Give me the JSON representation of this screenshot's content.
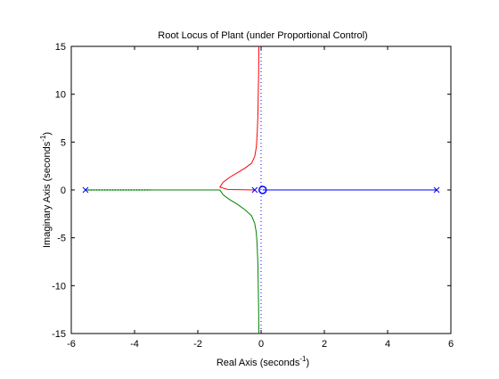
{
  "chart_data": {
    "type": "line",
    "title": "Root Locus of Plant (under Proportional Control)",
    "xlabel": "Real Axis (seconds",
    "xlabel_sup": "-1",
    "xlabel_end": ")",
    "ylabel": "Imaginary Axis (seconds",
    "ylabel_sup": "-1",
    "ylabel_end": ")",
    "xlim": [
      -6,
      6
    ],
    "ylim": [
      -15,
      15
    ],
    "xticks": [
      -6,
      -4,
      -2,
      0,
      2,
      4,
      6
    ],
    "yticks": [
      -15,
      -10,
      -5,
      0,
      5,
      10,
      15
    ],
    "grid": false,
    "series": [
      {
        "color": "#ff0000",
        "points": [
          [
            -0.2,
            0
          ],
          [
            -0.6,
            0.02
          ],
          [
            -1.05,
            0.05
          ],
          [
            -1.3,
            0.3
          ],
          [
            -1.2,
            0.8
          ],
          [
            -1.0,
            1.3
          ],
          [
            -0.75,
            1.8
          ],
          [
            -0.5,
            2.3
          ],
          [
            -0.3,
            2.8
          ],
          [
            -0.2,
            3.5
          ],
          [
            -0.15,
            4.5
          ],
          [
            -0.12,
            6
          ],
          [
            -0.1,
            8
          ],
          [
            -0.09,
            10
          ],
          [
            -0.08,
            12
          ],
          [
            -0.07,
            15
          ]
        ]
      },
      {
        "color": "#008000",
        "points": [
          [
            -5.55,
            0
          ],
          [
            -4,
            0
          ],
          [
            -3,
            0
          ],
          [
            -2,
            0
          ],
          [
            -1.3,
            0
          ],
          [
            -1.2,
            -0.5
          ],
          [
            -1.0,
            -1.0
          ],
          [
            -0.75,
            -1.5
          ],
          [
            -0.5,
            -2.1
          ],
          [
            -0.3,
            -2.7
          ],
          [
            -0.2,
            -3.5
          ],
          [
            -0.15,
            -4.5
          ],
          [
            -0.12,
            -6
          ],
          [
            -0.1,
            -8
          ],
          [
            -0.09,
            -10
          ],
          [
            -0.08,
            -12
          ],
          [
            -0.07,
            -15
          ]
        ]
      },
      {
        "color": "#0000ff",
        "points": [
          [
            5.55,
            0
          ],
          [
            3,
            0
          ],
          [
            1.5,
            0
          ],
          [
            0.5,
            0
          ],
          [
            0.05,
            0
          ]
        ]
      }
    ],
    "dotted_segment": {
      "color": "#008000",
      "from": [
        -5.55,
        0
      ],
      "to": [
        -3.5,
        0
      ]
    },
    "asymptote": {
      "x": 0,
      "color": "#0000ff"
    },
    "poles": [
      -5.55,
      -0.2,
      5.55
    ],
    "zeros": [
      0.05
    ]
  }
}
